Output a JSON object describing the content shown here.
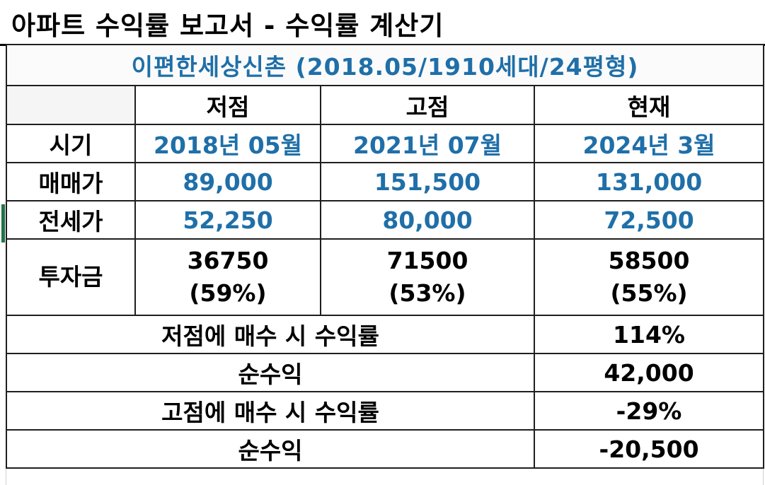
{
  "title": "아파트 수익률 보고서 - 수익률 계산기",
  "subtitle": "이편한세상신촌 (2018.05/1910세대/24평형)",
  "columns": [
    "",
    "저점",
    "고점",
    "현재"
  ],
  "rows": {
    "period": {
      "label": "시기",
      "values": [
        "2018년 05월",
        "2021년 07월",
        "2024년 3월"
      ]
    },
    "sale_price": {
      "label": "매매가",
      "values": [
        "89,000",
        "151,500",
        "131,000"
      ]
    },
    "jeonse_price": {
      "label": "전세가",
      "values": [
        "52,250",
        "80,000",
        "72,500"
      ]
    },
    "investment": {
      "label": "투자금",
      "values": [
        {
          "amount": "36750",
          "pct": "(59%)"
        },
        {
          "amount": "71500",
          "pct": "(53%)"
        },
        {
          "amount": "58500",
          "pct": "(55%)"
        }
      ]
    }
  },
  "summary": [
    {
      "label": "저점에 매수 시 수익률",
      "value": "114%"
    },
    {
      "label": "순수익",
      "value": "42,000"
    },
    {
      "label": "고점에 매수 시 수익률",
      "value": "-29%"
    },
    {
      "label": "순수익",
      "value": "-20,500"
    }
  ],
  "colors": {
    "accent_blue": "#1f6fa8",
    "selection_green": "#217346"
  }
}
